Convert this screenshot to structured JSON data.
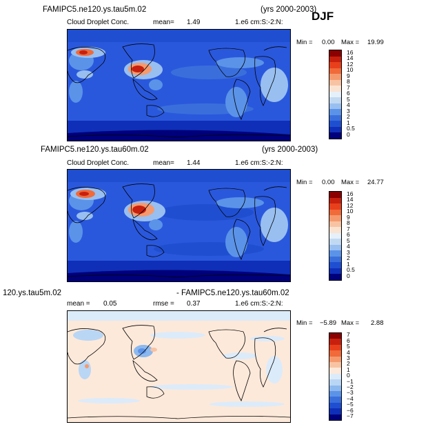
{
  "season": "DJF",
  "panels": [
    {
      "title": "FAMIPC5.ne120.ys.tau5m.02",
      "years": "(yrs 2000-2003)",
      "field": "Cloud Droplet Conc.",
      "mean_label": "mean=",
      "mean_value": "1.49",
      "units": "1.e6 cm:S:-2:N:",
      "min_label": "Min =",
      "min_value": "0.00",
      "max_label": "Max =",
      "max_value": "19.99",
      "colorbar_labels": [
        "16",
        "14",
        "12",
        "10",
        "9",
        "8",
        "7",
        "6",
        "5",
        "4",
        "3",
        "2",
        "1",
        "0.5",
        "0"
      ]
    },
    {
      "title": "FAMIPC5.ne120.ys.tau60m.02",
      "years": "(yrs 2000-2003)",
      "field": "Cloud Droplet Conc.",
      "mean_label": "mean=",
      "mean_value": "1.44",
      "units": "1.e6 cm:S:-2:N:",
      "min_label": "Min =",
      "min_value": "0.00",
      "max_label": "Max =",
      "max_value": "24.77",
      "colorbar_labels": [
        "16",
        "14",
        "12",
        "10",
        "9",
        "8",
        "7",
        "6",
        "5",
        "4",
        "3",
        "2",
        "1",
        "0.5",
        "0"
      ]
    },
    {
      "title_left": "120.ys.tau5m.02",
      "title_right": "- FAMIPC5.ne120.ys.tau60m.02",
      "mean_label": "mean =",
      "mean_value": "0.05",
      "rmse_label": "rmse =",
      "rmse_value": "0.37",
      "units": "1.e6 cm:S:-2:N:",
      "min_label": "Min =",
      "min_value": "−5.89",
      "max_label": "Max =",
      "max_value": "2.88",
      "colorbar_labels": [
        "7",
        "6",
        "5",
        "4",
        "3",
        "2",
        "1",
        "0",
        "−1",
        "−2",
        "−3",
        "−4",
        "−5",
        "−6",
        "−7"
      ]
    }
  ],
  "colors": {
    "abs_scale": [
      "#8b0000",
      "#c8200e",
      "#e8401c",
      "#f06a3a",
      "#f59a6e",
      "#f8c3a3",
      "#fbe3d2",
      "#e6f0fa",
      "#c2d9f2",
      "#98bff0",
      "#5b93e8",
      "#3a6fdb",
      "#1f4fd0",
      "#0f2fb8",
      "#00007a"
    ],
    "diff_scale": [
      "#8b0000",
      "#c8200e",
      "#e8401c",
      "#f06a3a",
      "#f59a6e",
      "#f8c3a3",
      "#fce9db",
      "#dcebfa",
      "#b9d6f5",
      "#8cb8ee",
      "#5b93e8",
      "#3a6fdb",
      "#1f4fd0",
      "#0f2fb8",
      "#00007a"
    ],
    "map_background_abs": "#2450d8",
    "map_background_diff": "#fde9da",
    "coast": "#000000"
  },
  "chart_data": [
    {
      "type": "heatmap",
      "title": "FAMIPC5.ne120.ys.tau5m.02",
      "variable": "Cloud Droplet Conc.",
      "units": "1.e6 cm:S:-2:N:",
      "mean": 1.49,
      "min": 0.0,
      "max": 19.99,
      "levels": [
        0,
        0.5,
        1,
        2,
        3,
        4,
        5,
        6,
        7,
        8,
        9,
        10,
        12,
        14,
        16
      ]
    },
    {
      "type": "heatmap",
      "title": "FAMIPC5.ne120.ys.tau60m.02",
      "variable": "Cloud Droplet Conc.",
      "units": "1.e6 cm:S:-2:N:",
      "mean": 1.44,
      "min": 0.0,
      "max": 24.77,
      "levels": [
        0,
        0.5,
        1,
        2,
        3,
        4,
        5,
        6,
        7,
        8,
        9,
        10,
        12,
        14,
        16
      ]
    },
    {
      "type": "heatmap",
      "title": "- FAMIPC5.ne120.ys.tau60m.02",
      "units": "1.e6 cm:S:-2:N:",
      "mean": 0.05,
      "rmse": 0.37,
      "min": -5.89,
      "max": 2.88,
      "levels": [
        -7,
        -6,
        -5,
        -4,
        -3,
        -2,
        -1,
        0,
        1,
        2,
        3,
        4,
        5,
        6,
        7
      ]
    }
  ]
}
